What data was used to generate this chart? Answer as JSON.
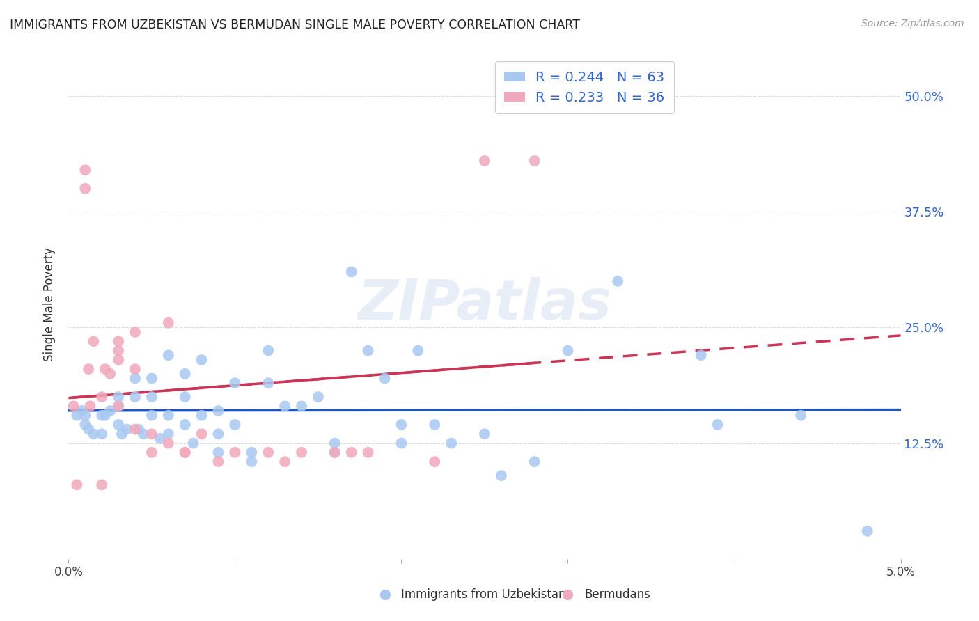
{
  "title": "IMMIGRANTS FROM UZBEKISTAN VS BERMUDAN SINGLE MALE POVERTY CORRELATION CHART",
  "source": "Source: ZipAtlas.com",
  "ylabel": "Single Male Poverty",
  "legend_label_blue": "Immigrants from Uzbekistan",
  "legend_label_pink": "Bermudans",
  "r_blue": 0.244,
  "n_blue": 63,
  "r_pink": 0.233,
  "n_pink": 36,
  "xlim": [
    0.0,
    0.05
  ],
  "ylim": [
    0.0,
    0.55
  ],
  "xticks": [
    0.0,
    0.01,
    0.02,
    0.03,
    0.04,
    0.05
  ],
  "xtick_labels": [
    "0.0%",
    "",
    "",
    "",
    "",
    "5.0%"
  ],
  "ytick_labels": [
    "",
    "12.5%",
    "25.0%",
    "37.5%",
    "50.0%"
  ],
  "yticks": [
    0.0,
    0.125,
    0.25,
    0.375,
    0.5
  ],
  "color_blue": "#a8c8f0",
  "color_pink": "#f0a8bc",
  "line_color_blue": "#2255bb",
  "line_color_pink": "#cc3355",
  "background_color": "#ffffff",
  "watermark": "ZIPatlas",
  "blue_points_x": [
    0.0005,
    0.0008,
    0.001,
    0.001,
    0.0012,
    0.0015,
    0.002,
    0.002,
    0.0022,
    0.0025,
    0.003,
    0.003,
    0.003,
    0.0032,
    0.0035,
    0.004,
    0.004,
    0.0042,
    0.0045,
    0.005,
    0.005,
    0.005,
    0.0055,
    0.006,
    0.006,
    0.006,
    0.007,
    0.007,
    0.007,
    0.0075,
    0.008,
    0.008,
    0.009,
    0.009,
    0.009,
    0.01,
    0.01,
    0.011,
    0.011,
    0.012,
    0.012,
    0.013,
    0.014,
    0.015,
    0.016,
    0.016,
    0.017,
    0.018,
    0.019,
    0.02,
    0.02,
    0.021,
    0.022,
    0.023,
    0.025,
    0.026,
    0.028,
    0.03,
    0.033,
    0.038,
    0.039,
    0.044,
    0.048
  ],
  "blue_points_y": [
    0.155,
    0.16,
    0.155,
    0.145,
    0.14,
    0.135,
    0.155,
    0.135,
    0.155,
    0.16,
    0.145,
    0.175,
    0.165,
    0.135,
    0.14,
    0.175,
    0.195,
    0.14,
    0.135,
    0.195,
    0.155,
    0.175,
    0.13,
    0.135,
    0.155,
    0.22,
    0.145,
    0.175,
    0.2,
    0.125,
    0.155,
    0.215,
    0.115,
    0.135,
    0.16,
    0.145,
    0.19,
    0.115,
    0.105,
    0.19,
    0.225,
    0.165,
    0.165,
    0.175,
    0.115,
    0.125,
    0.31,
    0.225,
    0.195,
    0.145,
    0.125,
    0.225,
    0.145,
    0.125,
    0.135,
    0.09,
    0.105,
    0.225,
    0.3,
    0.22,
    0.145,
    0.155,
    0.03
  ],
  "pink_points_x": [
    0.0003,
    0.0005,
    0.001,
    0.001,
    0.0012,
    0.0013,
    0.0015,
    0.002,
    0.002,
    0.0022,
    0.0025,
    0.003,
    0.003,
    0.003,
    0.003,
    0.004,
    0.004,
    0.004,
    0.005,
    0.005,
    0.006,
    0.006,
    0.007,
    0.007,
    0.008,
    0.009,
    0.01,
    0.012,
    0.013,
    0.014,
    0.016,
    0.017,
    0.018,
    0.022,
    0.025,
    0.028
  ],
  "pink_points_y": [
    0.165,
    0.08,
    0.42,
    0.4,
    0.205,
    0.165,
    0.235,
    0.08,
    0.175,
    0.205,
    0.2,
    0.165,
    0.215,
    0.225,
    0.235,
    0.14,
    0.205,
    0.245,
    0.135,
    0.115,
    0.125,
    0.255,
    0.115,
    0.115,
    0.135,
    0.105,
    0.115,
    0.115,
    0.105,
    0.115,
    0.115,
    0.115,
    0.115,
    0.105,
    0.43,
    0.43
  ]
}
